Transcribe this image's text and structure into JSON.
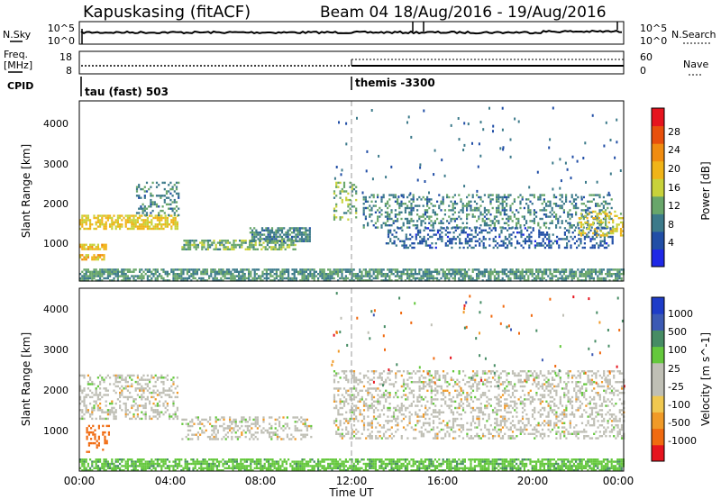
{
  "header": {
    "station_title": "Kapuskasing (fitACF)",
    "beam_title": "Beam 04  18/Aug/2016 - 19/Aug/2016"
  },
  "strip_panel": {
    "left_label_top": "N.Sky",
    "left_tick_top": "10^5",
    "left_tick_bottom": "10^0",
    "right_tick_top": "10^5",
    "right_tick_bottom": "10^0",
    "right_label": "N.Search"
  },
  "freq_panel": {
    "label_line1": "Freq.",
    "label_line2": "[MHz]",
    "left_tick_top": "18",
    "left_tick_bottom": "8",
    "right_tick_top": "60",
    "right_tick_bottom": "0",
    "right_label": "Nave"
  },
  "cpid": {
    "label": "CPID",
    "segments": [
      {
        "text": "tau (fast) 503",
        "start_hour": 0
      },
      {
        "text": "themis -3300",
        "start_hour": 12
      }
    ]
  },
  "x_axis": {
    "label": "Time UT",
    "ticks": [
      "00:00",
      "04:00",
      "08:00",
      "12:00",
      "16:00",
      "20:00",
      "00:00"
    ]
  },
  "colors": {
    "power_scale": [
      "#1f28e6",
      "#214ea6",
      "#3c7a8a",
      "#68a66a",
      "#c8d23a",
      "#f0b418",
      "#f08c10",
      "#e8500c",
      "#e6141e"
    ],
    "velocity_scale": [
      "#e6141e",
      "#f06a10",
      "#f09a28",
      "#f0c850",
      "#bfbfb5",
      "#bfbfb5",
      "#64c83c",
      "#468c64",
      "#3c5ab4",
      "#1e3cc8"
    ],
    "ground_scatter": "#bfbfb5"
  },
  "chart_data": [
    {
      "type": "heatmap",
      "name": "power",
      "ylabel": "Slant Range [km]",
      "ylim": [
        200,
        4550
      ],
      "yticks": [
        "1000",
        "2000",
        "3000",
        "4000"
      ],
      "xlim_hours": [
        0,
        24
      ],
      "colorbar": {
        "label": "Power [dB]",
        "ticks": [
          "4",
          "8",
          "12",
          "16",
          "20",
          "24",
          "28"
        ],
        "range": [
          0,
          30
        ]
      },
      "regions": [
        {
          "t": [
            0.0,
            4.3
          ],
          "r": [
            1450,
            1800
          ],
          "v": 17
        },
        {
          "t": [
            0.0,
            1.2
          ],
          "r": [
            950,
            1100
          ],
          "v": 18
        },
        {
          "t": [
            0.0,
            1.1
          ],
          "r": [
            700,
            850
          ],
          "v": 19
        },
        {
          "t": [
            2.5,
            4.4
          ],
          "r": [
            1800,
            2600
          ],
          "v": 9
        },
        {
          "t": [
            4.5,
            9.5
          ],
          "r": [
            950,
            1200
          ],
          "v": 12
        },
        {
          "t": [
            7.5,
            10.2
          ],
          "r": [
            1150,
            1500
          ],
          "v": 9
        },
        {
          "t": [
            11.2,
            12.2
          ],
          "r": [
            1700,
            2600
          ],
          "v": 12
        },
        {
          "t": [
            12.5,
            23.5
          ],
          "r": [
            1500,
            2300
          ],
          "v": 9
        },
        {
          "t": [
            13.5,
            23.5
          ],
          "r": [
            1000,
            1500
          ],
          "v": 6
        },
        {
          "t": [
            22.0,
            24.0
          ],
          "r": [
            1300,
            1900
          ],
          "v": 16
        },
        {
          "t": [
            0.0,
            24.0
          ],
          "r": [
            200,
            500
          ],
          "v": 10
        }
      ]
    },
    {
      "type": "heatmap",
      "name": "velocity",
      "ylabel": "Slant Range [km]",
      "ylim": [
        200,
        4550
      ],
      "yticks": [
        "1000",
        "2000",
        "3000",
        "4000"
      ],
      "xlim_hours": [
        0,
        24
      ],
      "colorbar": {
        "label": "Velocity [m s^-1]",
        "ticks": [
          "1000",
          "500",
          "100",
          "25",
          "-25",
          "-100",
          "-500",
          "-1000"
        ]
      },
      "regions": [
        {
          "t": [
            0.0,
            4.3
          ],
          "r": [
            1450,
            2500
          ],
          "v": 0
        },
        {
          "t": [
            0.3,
            1.3
          ],
          "r": [
            650,
            1300
          ],
          "v": -300
        },
        {
          "t": [
            4.5,
            10.2
          ],
          "r": [
            950,
            1500
          ],
          "v": 0
        },
        {
          "t": [
            11.2,
            24.0
          ],
          "r": [
            1000,
            2600
          ],
          "v": 0
        },
        {
          "t": [
            0.0,
            24.0
          ],
          "r": [
            200,
            500
          ],
          "v": 80
        }
      ]
    }
  ]
}
